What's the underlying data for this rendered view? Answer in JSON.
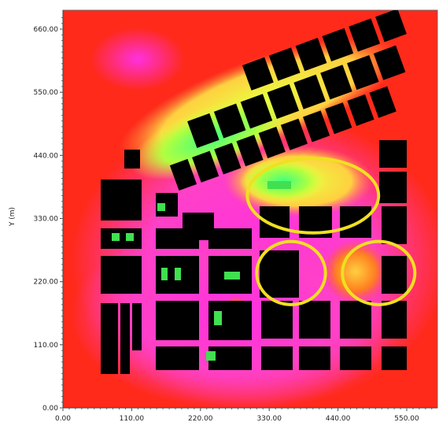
{
  "chart_data": {
    "type": "heatmap",
    "title": "",
    "xlabel": "",
    "ylabel": "Y (m)",
    "xlim": [
      0,
      640
    ],
    "ylim": [
      0,
      680
    ],
    "x_ticks": [
      0,
      110,
      220,
      330,
      440,
      550
    ],
    "x_tick_labels": [
      "0.00",
      "110.00",
      "220.00",
      "330.00",
      "440.00",
      "550.00"
    ],
    "y_ticks": [
      0,
      110,
      220,
      330,
      440,
      550,
      660
    ],
    "y_tick_labels": [
      "0.00",
      "110.00",
      "220.00",
      "330.00",
      "440.00",
      "550.00",
      "660.00"
    ],
    "grid": false,
    "colors": {
      "background_field": "#ff2a1a",
      "high": "#ff40d0",
      "mid": "#ff8040",
      "low_a": "#f0ff40",
      "low_b": "#40f060",
      "building": "#000000",
      "highlight_ellipse": "#f0e020"
    },
    "annotations": [
      {
        "shape": "ellipse",
        "center": [
          400,
          370
        ],
        "radii": [
          105,
          65
        ]
      },
      {
        "shape": "ellipse",
        "center": [
          365,
          235
        ],
        "radii": [
          55,
          55
        ]
      },
      {
        "shape": "ellipse",
        "center": [
          505,
          235
        ],
        "radii": [
          58,
          55
        ]
      }
    ]
  }
}
